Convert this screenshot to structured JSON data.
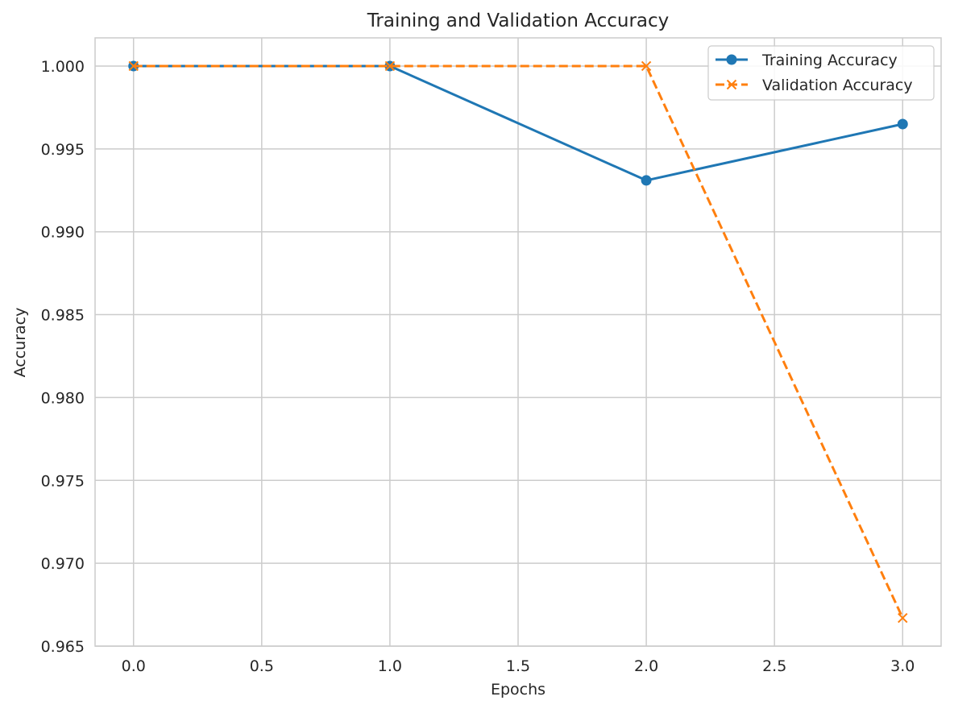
{
  "chart_data": {
    "type": "line",
    "title": "Training and Validation Accuracy",
    "xlabel": "Epochs",
    "ylabel": "Accuracy",
    "xlim": [
      -0.15,
      3.15
    ],
    "ylim": [
      0.965,
      1.0017
    ],
    "x_ticks": [
      0.0,
      0.5,
      1.0,
      1.5,
      2.0,
      2.5,
      3.0
    ],
    "x_tick_labels": [
      "0.0",
      "0.5",
      "1.0",
      "1.5",
      "2.0",
      "2.5",
      "3.0"
    ],
    "y_ticks": [
      0.965,
      0.97,
      0.975,
      0.98,
      0.985,
      0.99,
      0.995,
      1.0
    ],
    "y_tick_labels": [
      "0.965",
      "0.970",
      "0.975",
      "0.980",
      "0.985",
      "0.990",
      "0.995",
      "1.000"
    ],
    "grid": true,
    "legend_position": "top-right",
    "x": [
      0,
      1,
      2,
      3
    ],
    "series": [
      {
        "name": "Training Accuracy",
        "values": [
          1.0,
          1.0,
          0.9931,
          0.9965
        ],
        "color": "#1f77b4",
        "marker": "circle",
        "line_style": "solid"
      },
      {
        "name": "Validation Accuracy",
        "values": [
          1.0,
          1.0,
          1.0,
          0.9667
        ],
        "color": "#ff7f0e",
        "marker": "x",
        "line_style": "dashed"
      }
    ]
  }
}
